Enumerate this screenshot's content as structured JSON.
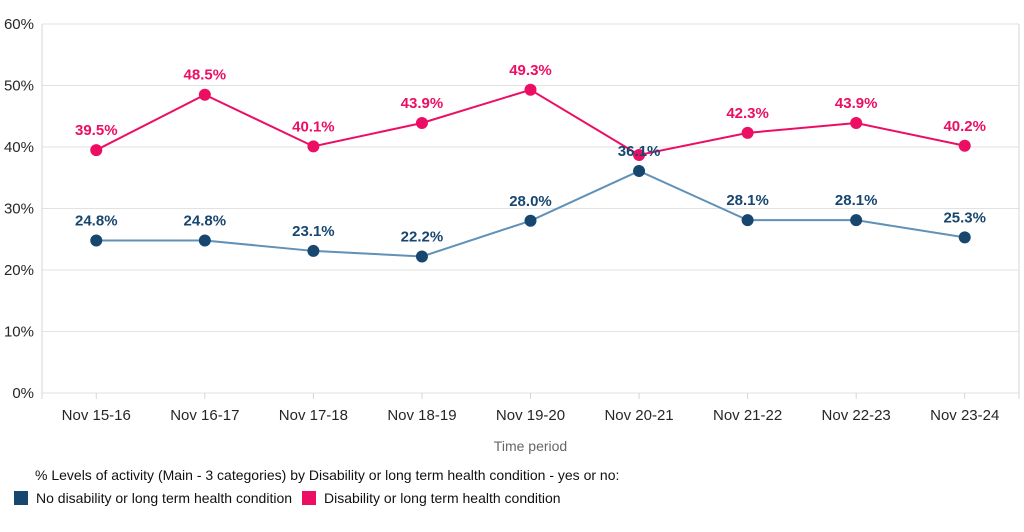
{
  "chart_data": {
    "type": "line",
    "title": "",
    "xlabel": "Time period",
    "ylabel": "",
    "ylim": [
      0,
      60
    ],
    "grid": true,
    "legend_position": "bottom",
    "yticks": [
      {
        "value": 0,
        "label": "0%"
      },
      {
        "value": 10,
        "label": "10%"
      },
      {
        "value": 20,
        "label": "20%"
      },
      {
        "value": 30,
        "label": "30%"
      },
      {
        "value": 40,
        "label": "40%"
      },
      {
        "value": 50,
        "label": "50%"
      },
      {
        "value": 60,
        "label": "60%"
      }
    ],
    "categories": [
      "Nov 15-16",
      "Nov 16-17",
      "Nov 17-18",
      "Nov 18-19",
      "Nov 19-20",
      "Nov 20-21",
      "Nov 21-22",
      "Nov 22-23",
      "Nov 23-24"
    ],
    "series": [
      {
        "name": "No disability or long term health condition",
        "slug": "no-disability",
        "values": [
          24.8,
          24.8,
          23.1,
          22.2,
          28.0,
          36.1,
          28.1,
          28.1,
          25.3
        ],
        "labels": [
          "24.8%",
          "24.8%",
          "23.1%",
          "22.2%",
          "28.0%",
          "36.1%",
          "28.1%",
          "28.1%",
          "25.3%"
        ],
        "line_color": "#6191B6",
        "marker_color": "#17466F",
        "label_color": "#17466F"
      },
      {
        "name": "Disability or long term health condition",
        "slug": "disability",
        "values": [
          39.5,
          48.5,
          40.1,
          43.9,
          49.3,
          38.7,
          42.3,
          43.9,
          40.2
        ],
        "labels": [
          "39.5%",
          "48.5%",
          "40.1%",
          "43.9%",
          "49.3%",
          null,
          "42.3%",
          "43.9%",
          "40.2%"
        ],
        "line_color": "#EC0E63",
        "marker_color": "#EC0E63",
        "label_color": "#EC0E63"
      }
    ]
  },
  "legend": {
    "title": "% Levels of activity (Main - 3 categories) by Disability or long term health condition - yes or no:",
    "items": [
      {
        "label": "No disability or long term health condition",
        "color": "#17466F"
      },
      {
        "label": "Disability or long term health condition",
        "color": "#EC0E63"
      }
    ]
  },
  "colors": {
    "grid": "#E2E2E2",
    "axis_line": "#D6D6D6",
    "axis_text": "#262626",
    "axis_title_text": "#666666"
  }
}
